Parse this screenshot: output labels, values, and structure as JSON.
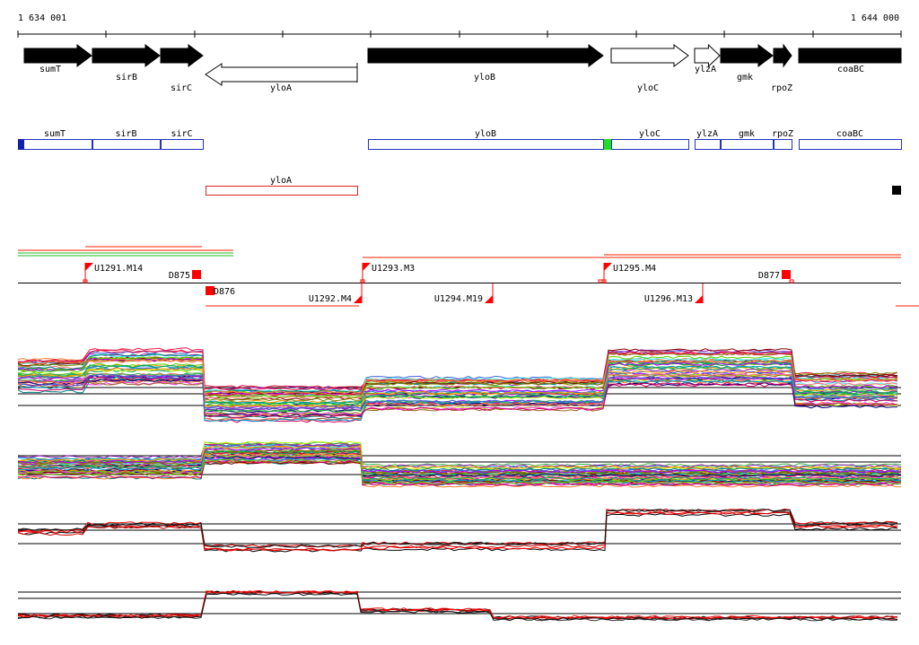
{
  "coordinates": {
    "start": "1 634 001",
    "end": "1 644 000"
  },
  "genes_top": [
    {
      "name": "sumT",
      "strand": "+",
      "filled": true
    },
    {
      "name": "sirB",
      "strand": "+",
      "filled": true
    },
    {
      "name": "sirC",
      "strand": "+",
      "filled": true
    },
    {
      "name": "yloA",
      "strand": "-",
      "filled": false
    },
    {
      "name": "yloB",
      "strand": "+",
      "filled": true
    },
    {
      "name": "yloC",
      "strand": "+",
      "filled": false
    },
    {
      "name": "ylzA",
      "strand": "+",
      "filled": false
    },
    {
      "name": "gmk",
      "strand": "+",
      "filled": true
    },
    {
      "name": "rpoZ",
      "strand": "+",
      "filled": true
    },
    {
      "name": "coaBC",
      "strand": "+",
      "filled": true
    }
  ],
  "genes_box_top": [
    "sumT",
    "sirB",
    "sirC",
    "yloB",
    "yloC",
    "ylzA",
    "gmk",
    "rpoZ",
    "coaBC"
  ],
  "genes_box_bottom": [
    "yloA"
  ],
  "transcription_signals": {
    "promoters_top": [
      "U1291.M14",
      "U1293.M3",
      "U1295.M4"
    ],
    "promoters_bottom": [
      "U1292.M4",
      "U1294.M19",
      "U1296.M13"
    ],
    "terminators": [
      "D875",
      "D876",
      "D877"
    ]
  },
  "colors": {
    "gene_fill": "#000000",
    "gene_box": "#2233bb",
    "gene_box_rev": "#dd2222",
    "signal": "#ff0000",
    "start_marker": "#1122aa",
    "green_marker": "#22dd22",
    "orange_line": "#ff2200",
    "green_line": "#22bb22"
  },
  "icons": {
    "promoter": "flag-icon",
    "terminator": "square-icon",
    "end_marker": "square-icon"
  }
}
